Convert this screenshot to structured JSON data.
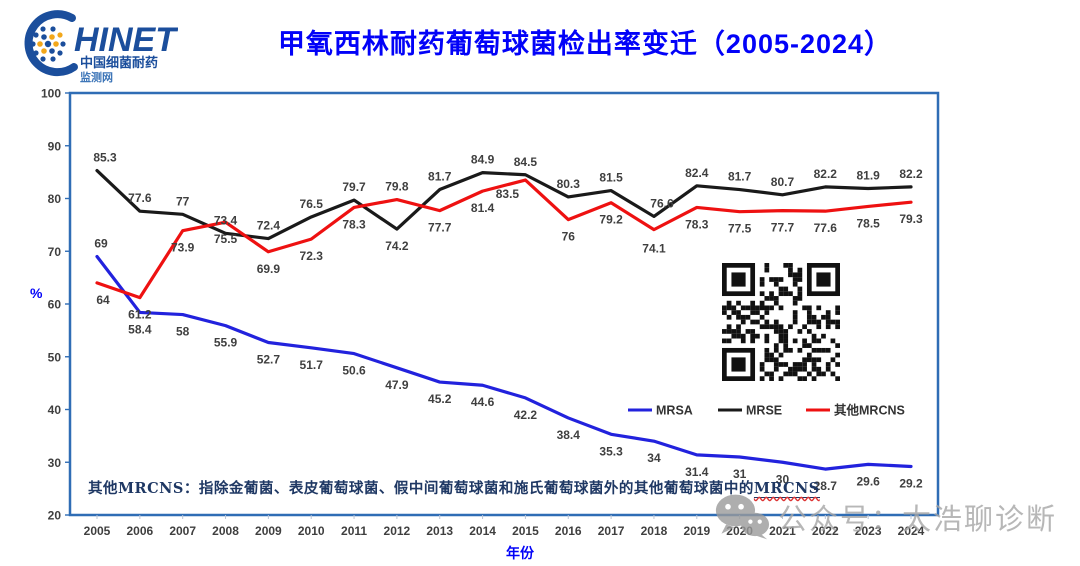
{
  "logo": {
    "brand": "HINET",
    "sub1": "中国细菌耐药",
    "sub2": "监测网"
  },
  "header": {
    "title": "甲氧西林耐药葡萄球菌检出率变迁（2005-2024）"
  },
  "chart_data": {
    "type": "line",
    "x": [
      2005,
      2006,
      2007,
      2008,
      2009,
      2010,
      2011,
      2012,
      2013,
      2014,
      2015,
      2016,
      2017,
      2018,
      2019,
      2020,
      2021,
      2022,
      2023,
      2024
    ],
    "series": [
      {
        "name": "MRSA",
        "slug": "mrsa",
        "color": "#2222DD",
        "values": [
          69,
          58.4,
          58,
          55.9,
          52.7,
          51.7,
          50.6,
          47.9,
          45.2,
          44.6,
          42.2,
          38.4,
          35.3,
          34,
          31.4,
          31,
          30,
          28.7,
          29.6,
          29.2
        ],
        "label_side": "below",
        "label_overrides": {
          "0": "above"
        }
      },
      {
        "name": "MRSE",
        "slug": "mrse",
        "color": "#1A1A1A",
        "values": [
          85.3,
          77.6,
          77,
          73.4,
          72.4,
          76.5,
          79.7,
          74.2,
          81.7,
          84.9,
          84.5,
          80.3,
          81.5,
          76.6,
          82.4,
          81.7,
          80.7,
          82.2,
          81.9,
          82.2
        ],
        "label_side": "above",
        "label_overrides": {
          "7": "below"
        }
      },
      {
        "name": "其他MRCNS",
        "slug": "other-mrcns",
        "color": "#EE1111",
        "values": [
          64,
          61.2,
          73.9,
          75.5,
          69.9,
          72.3,
          78.3,
          79.8,
          77.7,
          81.4,
          83.5,
          76,
          79.2,
          74.1,
          78.3,
          77.5,
          77.7,
          77.6,
          78.5,
          79.3
        ],
        "label_side": "below",
        "label_overrides": {
          "7": "above"
        }
      }
    ],
    "title": "甲氧西林耐药葡萄球菌检出率变迁（2005-2024）",
    "xlabel": "年份",
    "ylabel": "%",
    "ylim": [
      20,
      100
    ],
    "ytick_step": 10,
    "grid": false,
    "legend_position": "inside-middle-right"
  },
  "footnote": {
    "text": "其他MRCNS：指除金葡菌、表皮葡萄球菌、假中间葡萄球菌和施氏葡萄球菌外的其他葡萄球菌中的",
    "underlined": "MRCNS"
  },
  "watermark": {
    "text": "公众号：太浩聊诊断"
  },
  "colors": {
    "title": "#0202F8",
    "axis_text": "#3F3F3F",
    "plot_border": "#2F6DB5",
    "footnote": "#1F3864",
    "watermark": "#A6A6A6",
    "logo_blue": "#1B4E9C",
    "logo_yellow": "#F2A71B",
    "qr": "#111111"
  }
}
